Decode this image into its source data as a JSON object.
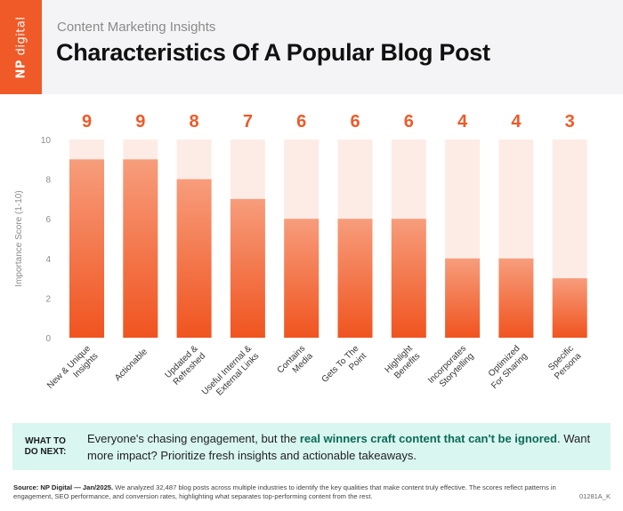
{
  "brand": {
    "logo_np": "NP",
    "logo_name": "digital"
  },
  "header": {
    "subtitle": "Content Marketing Insights",
    "title": "Characteristics Of A Popular Blog Post"
  },
  "chart_data": {
    "type": "bar",
    "ylabel": "Importance Score (1-10)",
    "ylim": [
      0,
      10
    ],
    "yticks": [
      0,
      2,
      4,
      6,
      8,
      10
    ],
    "categories": [
      [
        "New & Unique",
        "Insights"
      ],
      [
        "Actionable"
      ],
      [
        "Updated &",
        "Refreshed"
      ],
      [
        "Useful Internal &",
        "External Links"
      ],
      [
        "Contains",
        "Media"
      ],
      [
        "Gets To The",
        "Point"
      ],
      [
        "Highlight",
        "Benefits"
      ],
      [
        "Incorporates",
        "Storytelling"
      ],
      [
        "Optimized",
        "For Sharing"
      ],
      [
        "Specific",
        "Persona"
      ]
    ],
    "values": [
      9,
      9,
      8,
      7,
      6,
      6,
      6,
      4,
      4,
      3
    ],
    "value_labels": [
      "9",
      "9",
      "8",
      "7",
      "6",
      "6",
      "6",
      "4",
      "4",
      "3"
    ],
    "colors": {
      "bar_top": "#f79d7c",
      "bar_bottom": "#f0541f",
      "track": "#fdece6",
      "value_label": "#ef5a28",
      "axis_text": "#8a8a8a"
    }
  },
  "callout": {
    "label_line1": "WHAT TO",
    "label_line2": "DO NEXT:",
    "text_before": "Everyone's chasing engagement, but the ",
    "text_bold": "real winners craft content that can't be ignored",
    "text_after": ". Want more impact? Prioritize fresh insights and actionable takeaways."
  },
  "footer": {
    "source_bold": "Source: NP Digital — Jan/2025.",
    "source_text": " We analyzed 32,487 blog posts across multiple industries to identify the key qualities that make content truly effective. The scores reflect patterns in engagement, SEO performance, and conversion rates, highlighting what separates top-performing content from the rest.",
    "code": "01281A_K"
  }
}
